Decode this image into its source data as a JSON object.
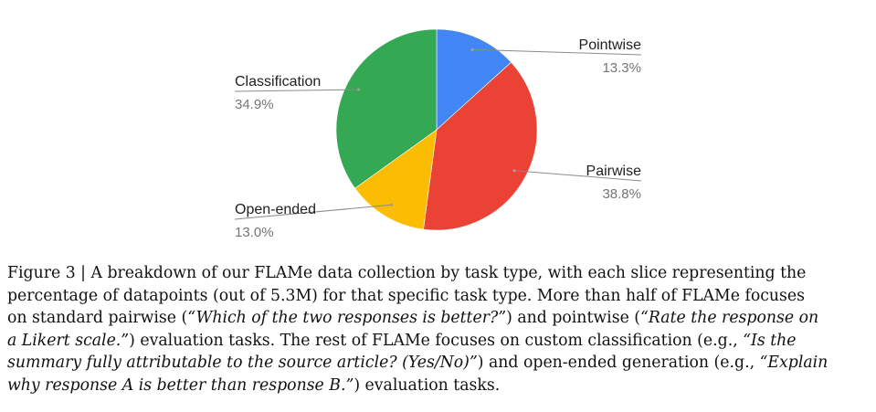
{
  "chart_data": {
    "type": "pie",
    "start_angle_deg": 0,
    "direction": "clockwise",
    "slices": [
      {
        "label": "Pointwise",
        "value": 13.3,
        "value_label": "13.3%",
        "color": "#4285F4"
      },
      {
        "label": "Pairwise",
        "value": 38.8,
        "value_label": "38.8%",
        "color": "#EA4335"
      },
      {
        "label": "Open-ended",
        "value": 13.0,
        "value_label": "13.0%",
        "color": "#FBBC04"
      },
      {
        "label": "Classification",
        "value": 34.9,
        "value_label": "34.9%",
        "color": "#34A853"
      }
    ],
    "legend": "none",
    "labels": "outside with leader lines"
  },
  "caption": {
    "lines": [
      [
        {
          "t": "Figure 3 | A breakdown of our FLAMe data collection by task type, with each slice representing the"
        }
      ],
      [
        {
          "t": "percentage of datapoints (out of 5.3M) for that specific task type. More than half of FLAMe focuses"
        }
      ],
      [
        {
          "t": "on standard pairwise ("
        },
        {
          "t": "“Which of the two responses is better?”",
          "i": true
        },
        {
          "t": ") and pointwise ("
        },
        {
          "t": "“Rate the response on",
          "i": true
        }
      ],
      [
        {
          "t": "a Likert scale.”",
          "i": true
        },
        {
          "t": ")  evaluation tasks.  The rest of FLAMe focuses on custom classification (e.g., "
        },
        {
          "t": "“Is the",
          "i": true
        }
      ],
      [
        {
          "t": "summary fully attributable to the source article? (Yes/No)”",
          "i": true
        },
        {
          "t": ") and open-ended generation (e.g., "
        },
        {
          "t": "“Explain",
          "i": true
        }
      ],
      [
        {
          "t": "why response A is better than response B.”",
          "i": true
        },
        {
          "t": ") evaluation tasks."
        }
      ]
    ]
  }
}
